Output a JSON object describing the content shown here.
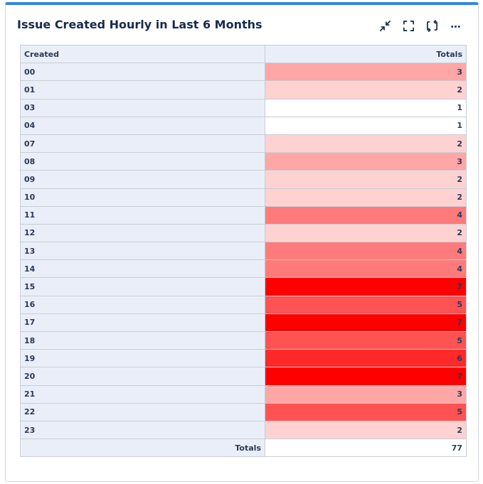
{
  "widget": {
    "title": "Issue Created Hourly in Last 6 Months"
  },
  "toolbar": {
    "icons": [
      "collapse-icon",
      "fullscreen-icon",
      "refresh-icon",
      "more-icon"
    ]
  },
  "table": {
    "headers": {
      "created": "Created",
      "totals": "Totals"
    },
    "rows": [
      {
        "hour": "00",
        "total": "3",
        "color": "#ffa6a6"
      },
      {
        "hour": "01",
        "total": "2",
        "color": "#ffd2d2"
      },
      {
        "hour": "03",
        "total": "1",
        "color": "#ffffff"
      },
      {
        "hour": "04",
        "total": "1",
        "color": "#ffffff"
      },
      {
        "hour": "07",
        "total": "2",
        "color": "#ffd2d2"
      },
      {
        "hour": "08",
        "total": "3",
        "color": "#ffa6a6"
      },
      {
        "hour": "09",
        "total": "2",
        "color": "#ffd2d2"
      },
      {
        "hour": "10",
        "total": "2",
        "color": "#ffd2d2"
      },
      {
        "hour": "11",
        "total": "4",
        "color": "#ff7b7b"
      },
      {
        "hour": "12",
        "total": "2",
        "color": "#ffd2d2"
      },
      {
        "hour": "13",
        "total": "4",
        "color": "#ff7b7b"
      },
      {
        "hour": "14",
        "total": "4",
        "color": "#ff7b7b"
      },
      {
        "hour": "15",
        "total": "7",
        "color": "#ff0000"
      },
      {
        "hour": "16",
        "total": "5",
        "color": "#ff5252"
      },
      {
        "hour": "17",
        "total": "7",
        "color": "#ff0000"
      },
      {
        "hour": "18",
        "total": "5",
        "color": "#ff5252"
      },
      {
        "hour": "19",
        "total": "6",
        "color": "#ff2929"
      },
      {
        "hour": "20",
        "total": "7",
        "color": "#ff0000"
      },
      {
        "hour": "21",
        "total": "3",
        "color": "#ffa6a6"
      },
      {
        "hour": "22",
        "total": "5",
        "color": "#ff5252"
      },
      {
        "hour": "23",
        "total": "2",
        "color": "#ffd2d2"
      }
    ],
    "footer": {
      "label": "Totals",
      "total": "77"
    }
  }
}
